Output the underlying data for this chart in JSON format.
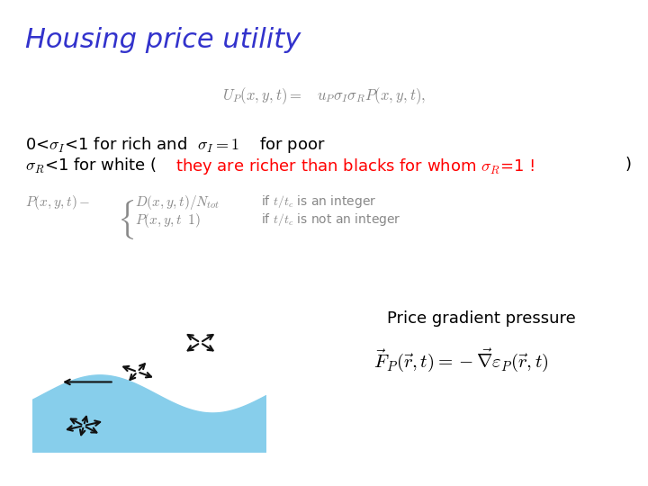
{
  "title": "Housing price utility",
  "title_color": "#3333cc",
  "title_fontsize": 22,
  "bg_color": "#ffffff",
  "label_price_gradient": "Price gradient pressure",
  "pink_color": "#f08080",
  "blue_color": "#87ceeb",
  "arrow_color": "#111111"
}
